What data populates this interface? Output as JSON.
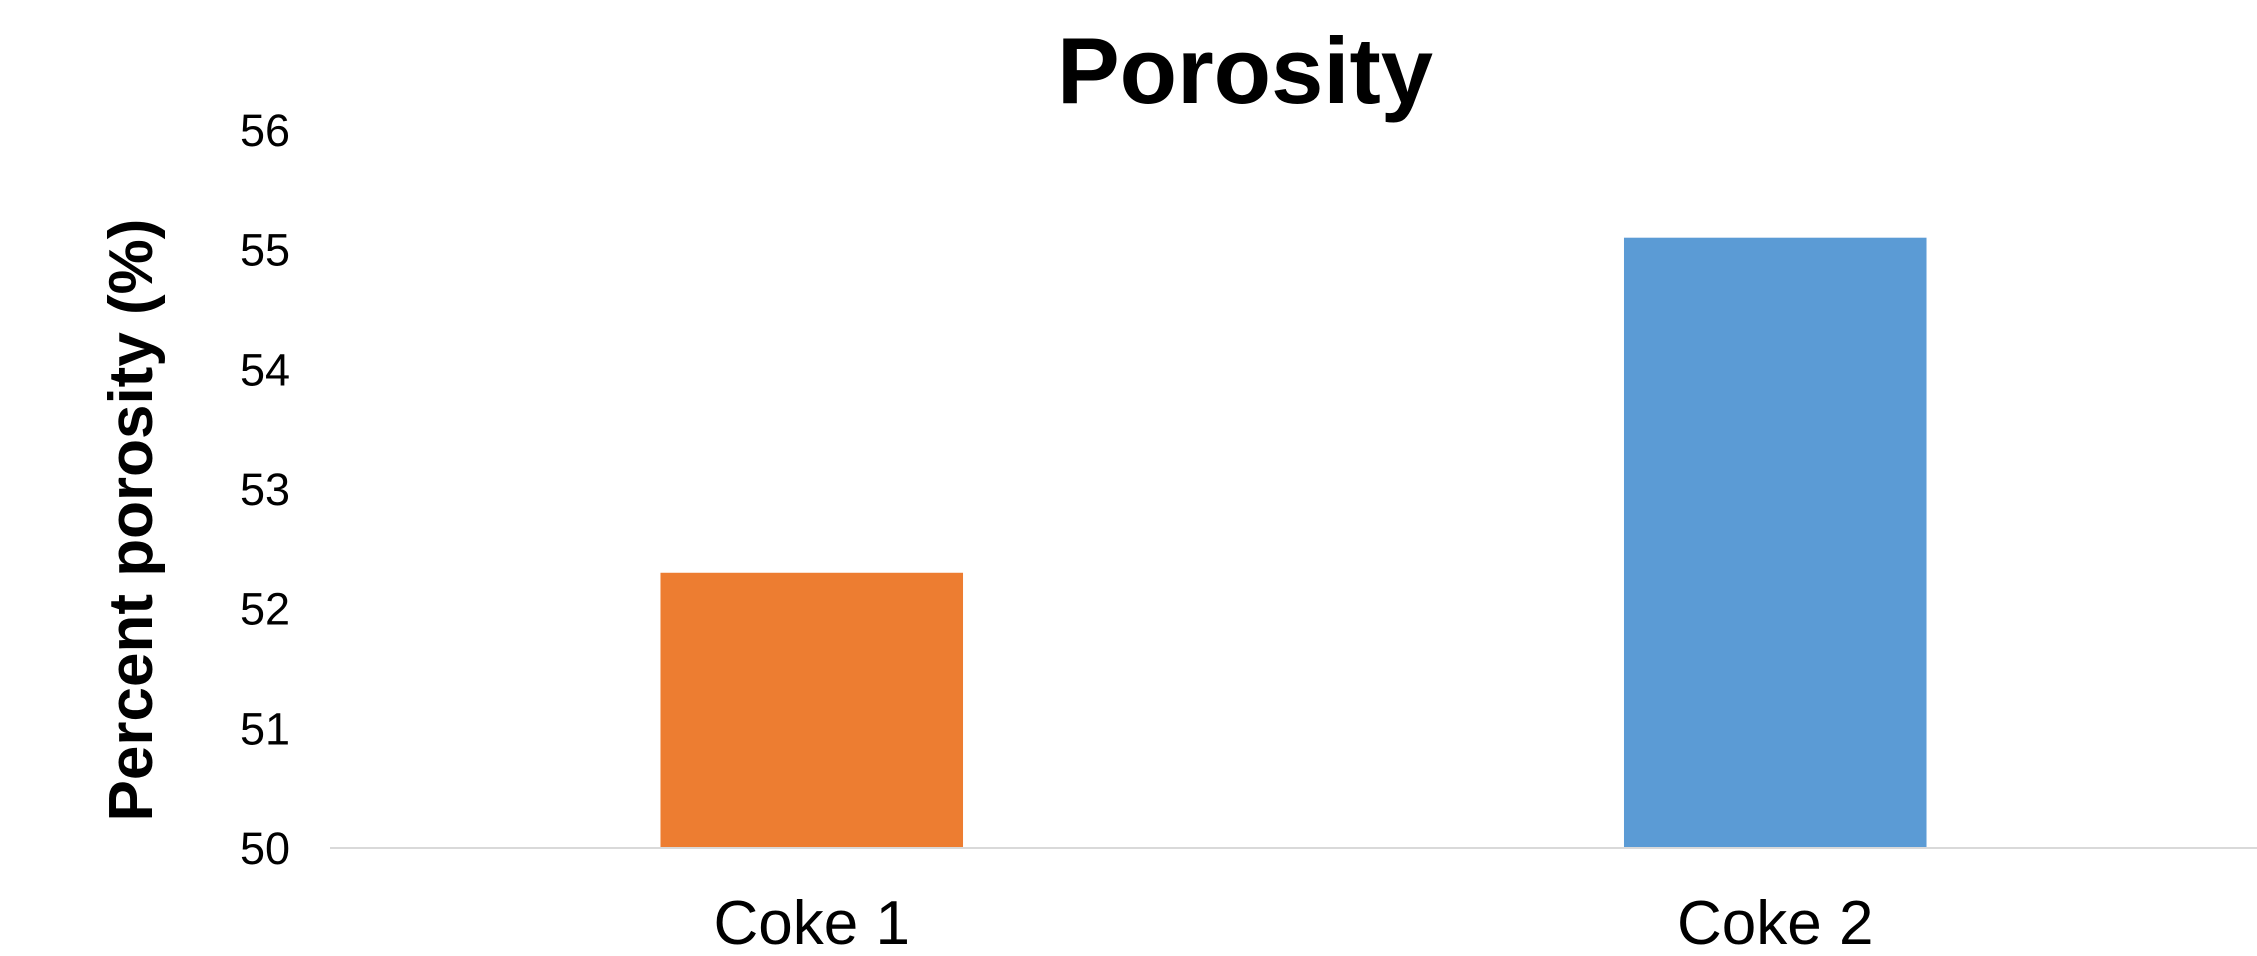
{
  "chart_data": {
    "type": "bar",
    "title": "Porosity",
    "xlabel": "",
    "ylabel": "Percent porosity (%)",
    "categories": [
      "Coke 1",
      "Coke 2"
    ],
    "values": [
      52.3,
      55.1
    ],
    "colors": [
      "#ED7D31",
      "#5B9BD5"
    ],
    "ylim": [
      50,
      56
    ],
    "yticks": [
      "50",
      "51",
      "52",
      "53",
      "54",
      "55",
      "56"
    ],
    "grid": false,
    "legend": "none"
  }
}
